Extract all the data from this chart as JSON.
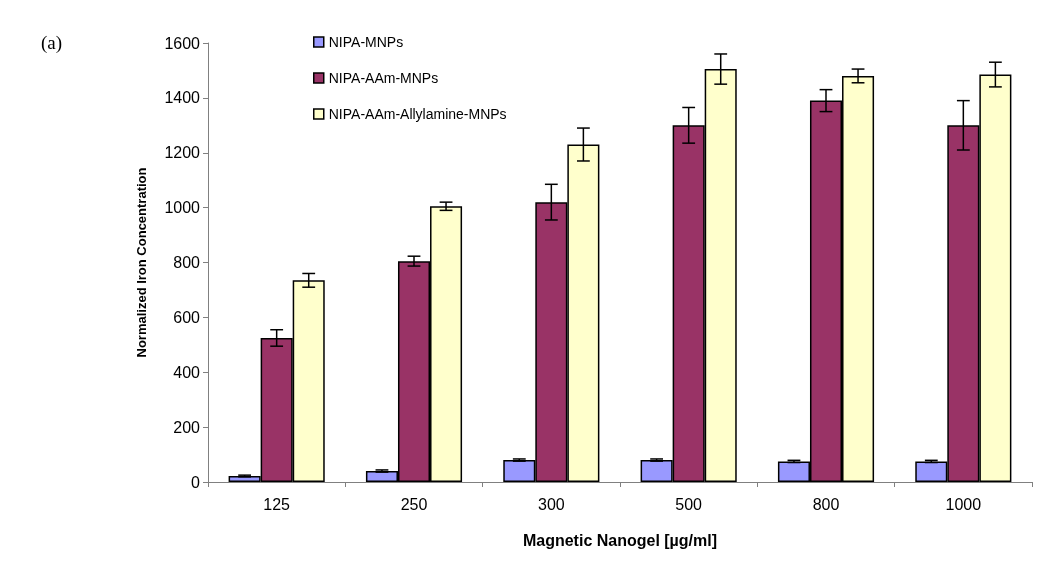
{
  "chart_data": {
    "type": "bar",
    "xlabel": "Magnetic Nanogel [µg/ml]",
    "ylabel": "Normalized Iron Concentration",
    "annotations": [
      "(a)"
    ],
    "categories": [
      "125",
      "250",
      "300",
      "500",
      "800",
      "1000"
    ],
    "series": [
      {
        "name": "NIPA-MNPs",
        "color": "#9999ff",
        "values": [
          22,
          40,
          80,
          80,
          75,
          75
        ],
        "errors": [
          3,
          4,
          4,
          4,
          4,
          4
        ]
      },
      {
        "name": "NIPA-AAm-MNPs",
        "color": "#993366",
        "values": [
          525,
          805,
          1020,
          1300,
          1390,
          1300
        ],
        "errors": [
          30,
          18,
          65,
          65,
          40,
          90
        ]
      },
      {
        "name": "NIPA-AAm-Allylamine-MNPs",
        "color": "#ffffcc",
        "values": [
          735,
          1005,
          1230,
          1505,
          1480,
          1485
        ],
        "errors": [
          25,
          15,
          60,
          55,
          25,
          45
        ]
      }
    ],
    "ylim": [
      0,
      1600
    ],
    "yticks": [
      0,
      200,
      400,
      600,
      800,
      1000,
      1200,
      1400,
      1600
    ],
    "grid": false,
    "legend": "top left"
  }
}
